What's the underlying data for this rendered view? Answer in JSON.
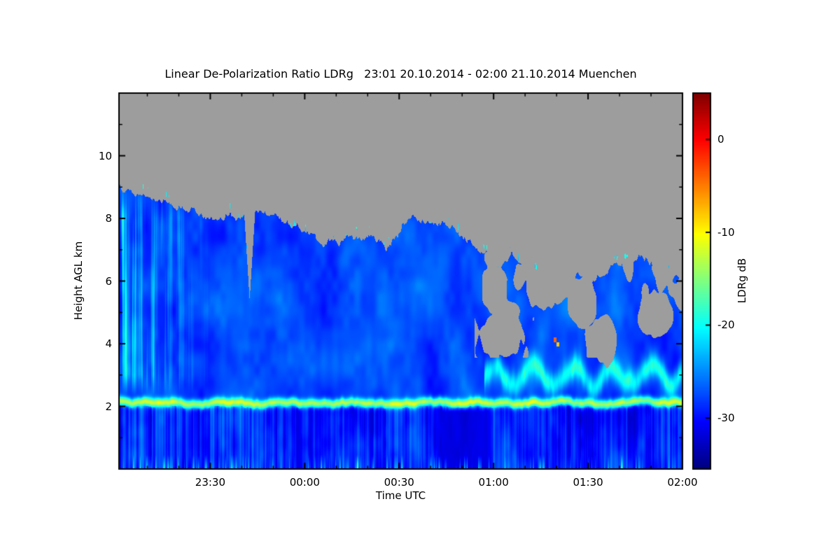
{
  "chart_data": {
    "type": "heatmap",
    "title": "Linear De-Polarization Ratio LDRg   23:01 20.10.2014 - 02:00 21.10.2014 Muenchen",
    "xlabel": "Time UTC",
    "ylabel": "Height AGL km",
    "colorbar_label": "LDRg dB",
    "time_start": "23:01 20.10.2014",
    "time_end": "02:00 21.10.2014",
    "location": "Muenchen",
    "duration_min": 179,
    "ylim_km": [
      0,
      12
    ],
    "y_ticks_km": [
      2,
      4,
      6,
      8,
      10
    ],
    "x_ticks": [
      {
        "label": "23:30",
        "t_min": 29
      },
      {
        "label": "00:00",
        "t_min": 59
      },
      {
        "label": "00:30",
        "t_min": 89
      },
      {
        "label": "01:00",
        "t_min": 119
      },
      {
        "label": "01:30",
        "t_min": 149
      },
      {
        "label": "02:00",
        "t_min": 179
      }
    ],
    "value_range_db": [
      -35.5,
      5.0
    ],
    "colorbar_ticks_db": [
      0,
      -10,
      -20,
      -30
    ],
    "colormap": "jet",
    "no_data_color": "#9d9d9d",
    "features": {
      "base_db": -27.5,
      "cloud_top_profile_km": {
        "t_step_min": 5,
        "values": [
          9.0,
          8.8,
          8.6,
          8.5,
          8.3,
          8.2,
          7.9,
          8.1,
          8.1,
          8.2,
          8.1,
          7.8,
          7.6,
          7.2,
          7.3,
          7.4,
          7.4,
          7.0,
          7.8,
          8.1,
          7.9,
          7.8,
          7.3,
          6.9,
          6.5,
          6.8,
          6.4,
          6.5,
          6.8,
          6.2,
          6.0,
          6.3,
          6.7,
          6.8,
          6.5,
          6.3,
          6.0
        ]
      },
      "cloud_top_notches": [
        {
          "t_min": 41.5,
          "half_width_min": 2.5,
          "down_to_km": 5.4
        }
      ],
      "broken_after_min": 113,
      "gaps": [
        {
          "t0": 116,
          "t1": 128.5,
          "h0": 3.55,
          "h1": 5.05
        },
        {
          "t0": 129,
          "t1": 140,
          "h0": 5.1,
          "h1": 6.6
        },
        {
          "t0": 142,
          "t1": 152,
          "h0": 4.5,
          "h1": 6.1
        },
        {
          "t0": 151,
          "t1": 158.5,
          "h0": 3.3,
          "h1": 4.9
        },
        {
          "t0": 165,
          "t1": 176,
          "h0": 4.2,
          "h1": 5.7
        }
      ],
      "melting_layer": {
        "height_km": 2.12,
        "wiggle_km": 0.13,
        "thickness_km": 0.14,
        "peak_db": -12.5
      },
      "wavy_band": {
        "start_min": 116,
        "center_km": 2.95,
        "half_width_km": 0.38,
        "amp_db": 11
      },
      "fall_streaks": {
        "until_min": 30,
        "max_boost_db": 9
      },
      "dark_zone": {
        "t0_min": 100,
        "t1_min": 118.5,
        "top_km": 2.0,
        "db": -31.5
      },
      "hot_specks": [
        {
          "t_min": 138.6,
          "h_km": 4.12,
          "db": -4
        },
        {
          "t_min": 139.5,
          "h_km": 3.98,
          "db": -8
        }
      ]
    }
  }
}
